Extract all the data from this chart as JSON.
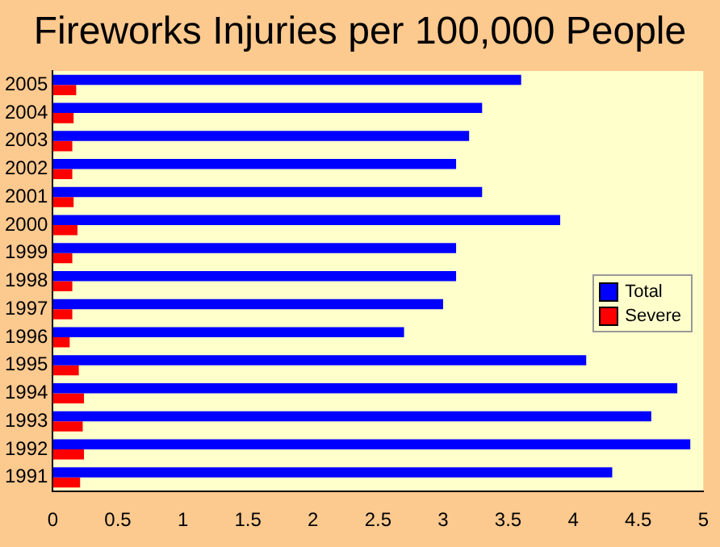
{
  "chart_data": {
    "type": "bar",
    "orientation": "horizontal",
    "title": "Fireworks Injuries per 100,000 People",
    "categories": [
      "2005",
      "2004",
      "2003",
      "2002",
      "2001",
      "2000",
      "1999",
      "1998",
      "1997",
      "1996",
      "1995",
      "1994",
      "1993",
      "1992",
      "1991"
    ],
    "series": [
      {
        "name": "Total",
        "color": "#0000ff",
        "values": [
          3.6,
          3.3,
          3.2,
          3.1,
          3.3,
          3.9,
          3.1,
          3.1,
          3.0,
          2.7,
          4.1,
          4.8,
          4.6,
          4.9,
          4.3
        ]
      },
      {
        "name": "Severe",
        "color": "#ff0000",
        "values": [
          0.18,
          0.16,
          0.15,
          0.15,
          0.16,
          0.19,
          0.15,
          0.15,
          0.15,
          0.13,
          0.2,
          0.24,
          0.23,
          0.24,
          0.21
        ]
      }
    ],
    "xlim": [
      0,
      5
    ],
    "xticks": [
      0,
      0.5,
      1,
      1.5,
      2,
      2.5,
      3,
      3.5,
      4,
      4.5,
      5
    ],
    "grid": false,
    "legend": "right"
  }
}
